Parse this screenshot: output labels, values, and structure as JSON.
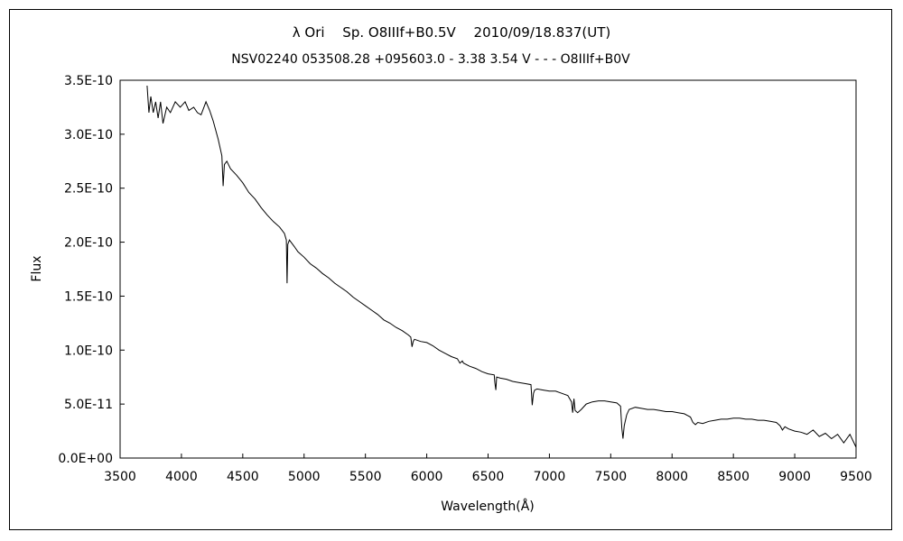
{
  "chart_data": {
    "type": "line",
    "title": "λ Ori　 Sp. O8IIIf+B0.5V　 2010/09/18.837(UT)",
    "subtitle": "NSV02240 053508.28 +095603.0 - 3.38 3.54 V - - - O8IIIf+B0V",
    "xlabel": "Wavelength(Å)",
    "ylabel": "Flux",
    "xlim": [
      3500,
      9500
    ],
    "ylim": [
      0,
      3.5e-10
    ],
    "x_ticks": [
      "3500",
      "4000",
      "4500",
      "5000",
      "5500",
      "6000",
      "6500",
      "7000",
      "7500",
      "8000",
      "8500",
      "9000",
      "9500"
    ],
    "y_ticks": [
      "0.0E+00",
      "5.0E-11",
      "1.0E-10",
      "1.5E-10",
      "2.0E-10",
      "2.5E-10",
      "3.0E-10",
      "3.5E-10"
    ],
    "grid": false,
    "legend": "none",
    "line_color": "#000000",
    "series": [
      {
        "x": [
          3720,
          3735,
          3750,
          3770,
          3790,
          3810,
          3830,
          3850,
          3880,
          3910,
          3950,
          3990,
          4030,
          4060,
          4100,
          4130,
          4160,
          4200,
          4230,
          4260,
          4300,
          4330,
          4340,
          4350,
          4370,
          4400,
          4450,
          4500,
          4550,
          4600,
          4650,
          4700,
          4750,
          4800,
          4840,
          4855,
          4861,
          4867,
          4880,
          4920,
          4950,
          5000,
          5050,
          5100,
          5150,
          5200,
          5250,
          5300,
          5350,
          5400,
          5450,
          5500,
          5550,
          5600,
          5650,
          5700,
          5750,
          5800,
          5850,
          5870,
          5880,
          5890,
          5900,
          5950,
          6000,
          6050,
          6100,
          6150,
          6200,
          6250,
          6270,
          6290,
          6300,
          6350,
          6400,
          6450,
          6500,
          6550,
          6555,
          6563,
          6570,
          6600,
          6650,
          6700,
          6750,
          6800,
          6850,
          6860,
          6870,
          6880,
          6900,
          6950,
          7000,
          7050,
          7100,
          7150,
          7180,
          7190,
          7200,
          7210,
          7230,
          7260,
          7300,
          7350,
          7400,
          7450,
          7500,
          7550,
          7580,
          7590,
          7600,
          7610,
          7630,
          7650,
          7700,
          7750,
          7800,
          7850,
          7900,
          7950,
          8000,
          8050,
          8100,
          8150,
          8170,
          8190,
          8210,
          8250,
          8300,
          8350,
          8400,
          8450,
          8500,
          8550,
          8600,
          8650,
          8700,
          8750,
          8800,
          8850,
          8880,
          8900,
          8920,
          8950,
          9000,
          9050,
          9100,
          9150,
          9200,
          9250,
          9300,
          9350,
          9400,
          9450,
          9500
        ],
        "y": [
          3.45e-10,
          3.2e-10,
          3.35e-10,
          3.2e-10,
          3.3e-10,
          3.15e-10,
          3.3e-10,
          3.1e-10,
          3.25e-10,
          3.2e-10,
          3.3e-10,
          3.25e-10,
          3.3e-10,
          3.22e-10,
          3.25e-10,
          3.2e-10,
          3.18e-10,
          3.3e-10,
          3.22e-10,
          3.12e-10,
          2.95e-10,
          2.8e-10,
          2.52e-10,
          2.72e-10,
          2.75e-10,
          2.68e-10,
          2.62e-10,
          2.55e-10,
          2.46e-10,
          2.4e-10,
          2.32e-10,
          2.25e-10,
          2.19e-10,
          2.14e-10,
          2.08e-10,
          2.02e-10,
          1.62e-10,
          1.98e-10,
          2.02e-10,
          1.96e-10,
          1.91e-10,
          1.86e-10,
          1.8e-10,
          1.76e-10,
          1.71e-10,
          1.67e-10,
          1.62e-10,
          1.58e-10,
          1.54e-10,
          1.49e-10,
          1.45e-10,
          1.41e-10,
          1.37e-10,
          1.33e-10,
          1.28e-10,
          1.25e-10,
          1.21e-10,
          1.18e-10,
          1.14e-10,
          1.12e-10,
          1.03e-10,
          1.08e-10,
          1.1e-10,
          1.08e-10,
          1.07e-10,
          1.04e-10,
          1e-10,
          9.7e-11,
          9.4e-11,
          9.2e-11,
          8.8e-11,
          9e-11,
          8.8e-11,
          8.5e-11,
          8.3e-11,
          8e-11,
          7.8e-11,
          7.7e-11,
          7e-11,
          6.3e-11,
          7.5e-11,
          7.4e-11,
          7.3e-11,
          7.1e-11,
          7e-11,
          6.9e-11,
          6.8e-11,
          4.9e-11,
          6e-11,
          6.3e-11,
          6.4e-11,
          6.3e-11,
          6.2e-11,
          6.2e-11,
          6e-11,
          5.8e-11,
          5.2e-11,
          4.2e-11,
          5.5e-11,
          4.4e-11,
          4.2e-11,
          4.5e-11,
          5e-11,
          5.2e-11,
          5.3e-11,
          5.3e-11,
          5.2e-11,
          5.1e-11,
          4.8e-11,
          2.8e-11,
          1.8e-11,
          3e-11,
          4e-11,
          4.5e-11,
          4.7e-11,
          4.6e-11,
          4.5e-11,
          4.5e-11,
          4.4e-11,
          4.3e-11,
          4.3e-11,
          4.2e-11,
          4.1e-11,
          3.8e-11,
          3.3e-11,
          3.1e-11,
          3.3e-11,
          3.2e-11,
          3.4e-11,
          3.5e-11,
          3.6e-11,
          3.6e-11,
          3.7e-11,
          3.7e-11,
          3.6e-11,
          3.6e-11,
          3.5e-11,
          3.5e-11,
          3.4e-11,
          3.3e-11,
          3e-11,
          2.6e-11,
          2.9e-11,
          2.7e-11,
          2.5e-11,
          2.4e-11,
          2.2e-11,
          2.6e-11,
          2e-11,
          2.3e-11,
          1.8e-11,
          2.2e-11,
          1.4e-11,
          2.2e-11,
          1e-11
        ]
      }
    ]
  }
}
